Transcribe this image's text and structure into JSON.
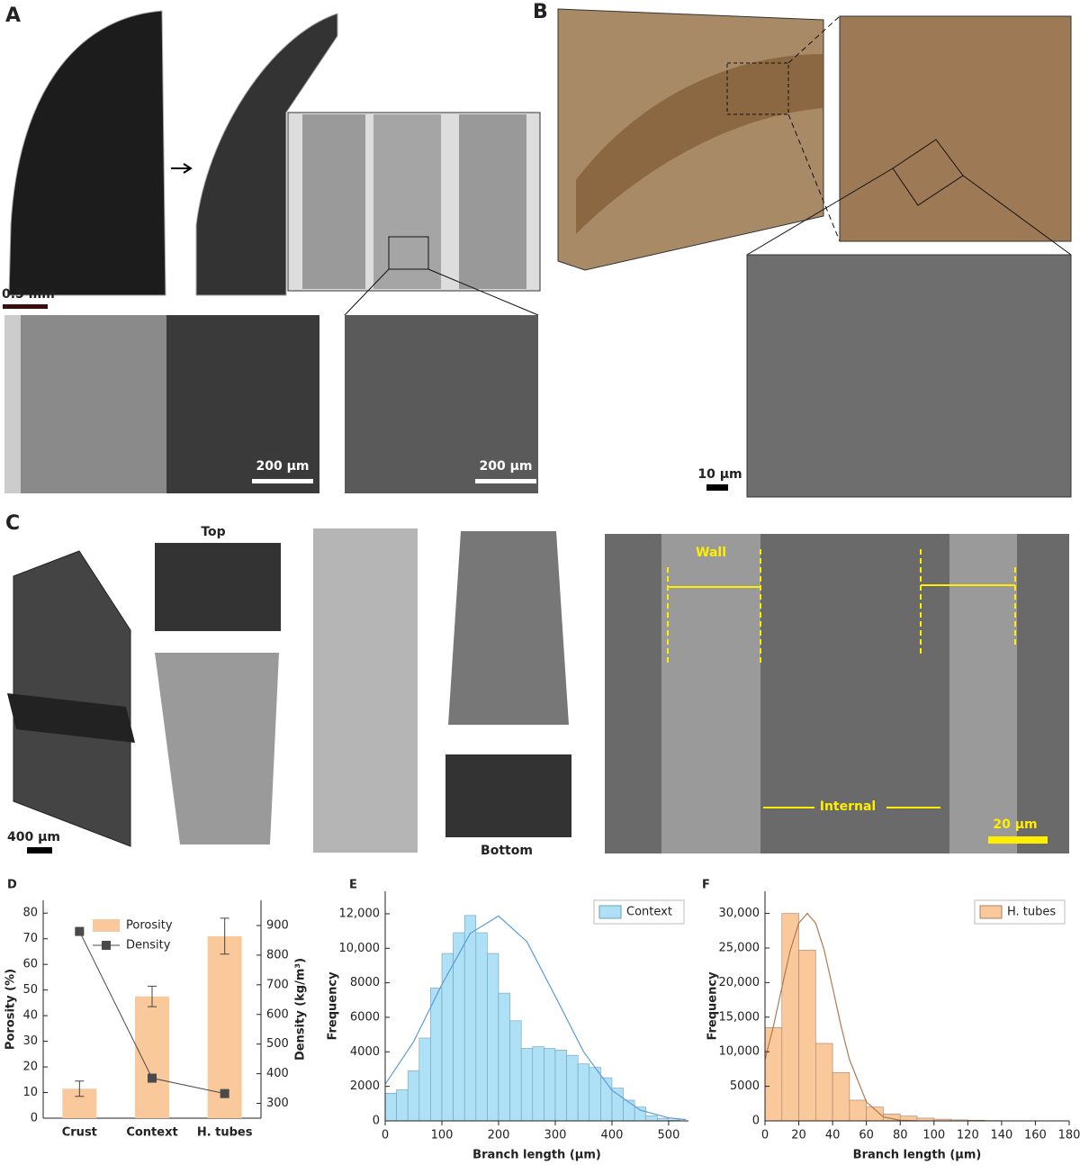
{
  "panels": {
    "A": {
      "label": "A",
      "scale_bars": [
        "0.5 mm",
        "200 µm",
        "200 µm"
      ]
    },
    "B": {
      "label": "B",
      "scale_bar": "10 µm"
    },
    "C": {
      "label": "C",
      "scale_bar": "400 µm",
      "views": [
        "Top",
        "Bottom"
      ],
      "annotations": [
        "Wall",
        "Internal"
      ],
      "sem_scale_bar": "20 µm"
    }
  },
  "chart_data": [
    {
      "type": "bar",
      "panel_label": "D",
      "categories": [
        "Crust",
        "Context",
        "H. tubes"
      ],
      "series": [
        {
          "name": "Porosity",
          "color": "#f9c89b",
          "values": [
            11.5,
            47.5,
            71
          ],
          "errors": [
            3,
            4,
            7
          ]
        },
        {
          "name": "Density",
          "type": "line",
          "axis": "y2",
          "color": "#4a4a4a",
          "values": [
            880,
            385,
            333
          ],
          "errors": [
            8,
            10,
            10
          ]
        }
      ],
      "y_label": "Porosity (%)",
      "y2_label": "Density (kg/m³)",
      "ylim": [
        0,
        85
      ],
      "yticks": [
        0,
        10,
        20,
        30,
        40,
        50,
        60,
        70,
        80
      ],
      "y2lim": [
        250,
        985
      ],
      "y2ticks": [
        300,
        400,
        500,
        600,
        700,
        800,
        900
      ],
      "legend": "upper center"
    },
    {
      "type": "histogram",
      "panel_label": "E",
      "bins": [
        0,
        20,
        40,
        60,
        80,
        100,
        120,
        140,
        160,
        180,
        200,
        220,
        240,
        260,
        280,
        300,
        320,
        340,
        360,
        380,
        400,
        420,
        440,
        460,
        480,
        500,
        520
      ],
      "series": [
        {
          "name": "Context",
          "color": "#aee0f6",
          "edge": "#6f9fb5",
          "values": [
            1600,
            1800,
            2900,
            4800,
            7700,
            9700,
            10900,
            11900,
            10900,
            9700,
            7400,
            5800,
            4200,
            4300,
            4200,
            4100,
            3800,
            3300,
            3100,
            2500,
            1900,
            1200,
            800,
            300,
            150,
            50
          ]
        }
      ],
      "fit_x": [
        0,
        50,
        100,
        150,
        200,
        250,
        300,
        350,
        400,
        450,
        500,
        530
      ],
      "fit_values": [
        2120,
        4580,
        7900,
        10860,
        11870,
        10380,
        7220,
        4000,
        1770,
        620,
        175,
        73
      ],
      "fit_color": "#5b9bd5",
      "x_label": "Branch length (µm)",
      "y_label": "Frequency",
      "xlim": [
        0,
        535
      ],
      "xticks": [
        0,
        100,
        200,
        300,
        400,
        500
      ],
      "ylim": [
        0,
        13300
      ],
      "yticks": [
        0,
        2000,
        4000,
        6000,
        8000,
        {
          "value": 10000,
          "label": "10,000"
        },
        {
          "value": 12000,
          "label": "12,000"
        }
      ],
      "legend": "upper right"
    },
    {
      "type": "histogram",
      "panel_label": "F",
      "bins": [
        0,
        10,
        20,
        30,
        40,
        50,
        60,
        70,
        80,
        90,
        100,
        110,
        120,
        130,
        140,
        150
      ],
      "series": [
        {
          "name": "H. tubes",
          "color": "#f9c89b",
          "edge": "#a8806a",
          "values": [
            13500,
            30000,
            24700,
            11200,
            7000,
            3000,
            2000,
            1000,
            700,
            400,
            250,
            150,
            100,
            50,
            30
          ]
        }
      ],
      "fit_x": [
        0,
        5,
        10,
        15,
        20,
        25,
        30,
        35,
        40,
        45,
        50,
        60,
        70,
        80,
        90
      ],
      "fit_values": [
        8850,
        13700,
        19300,
        24700,
        28600,
        30000,
        28600,
        24700,
        19300,
        13700,
        8850,
        2740,
        570,
        80,
        5
      ],
      "fit_color": "#b07a50",
      "x_label": "Branch length (µm)",
      "y_label": "Frequency",
      "xlim": [
        0,
        180
      ],
      "xticks": [
        0,
        20,
        40,
        60,
        80,
        100,
        120,
        140,
        160,
        180
      ],
      "ylim": [
        0,
        33200
      ],
      "yticks": [
        0,
        5000,
        {
          "value": 10000,
          "label": "10,000"
        },
        {
          "value": 15000,
          "label": "15,000"
        },
        {
          "value": 20000,
          "label": "20,000"
        },
        {
          "value": 25000,
          "label": "25,000"
        },
        {
          "value": 30000,
          "label": "30,000"
        }
      ],
      "legend": "upper right"
    }
  ]
}
